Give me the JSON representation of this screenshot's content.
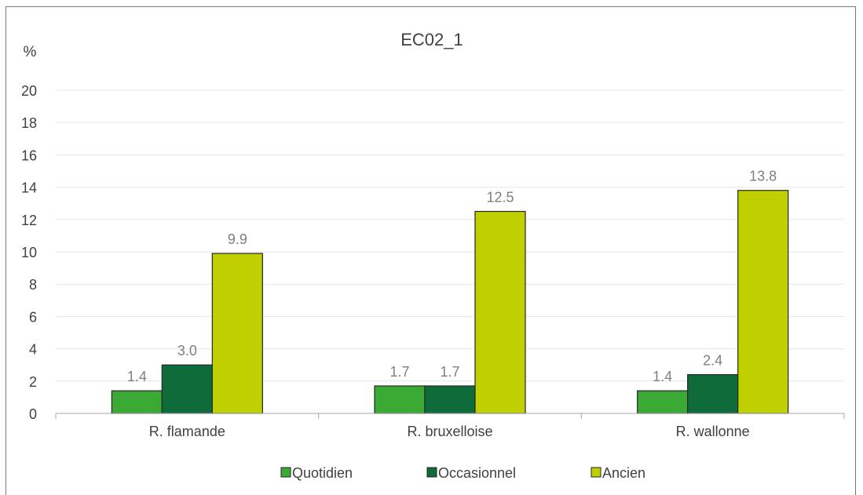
{
  "chart_data": {
    "type": "bar",
    "title": "EC02_1",
    "ylabel": "%",
    "xlabel": "",
    "categories": [
      "R. flamande",
      "R. bruxelloise",
      "R. wallonne"
    ],
    "series": [
      {
        "name": "Quotidien",
        "values": [
          1.4,
          1.7,
          1.4
        ],
        "labels": [
          "1.4",
          "1.7",
          "1.4"
        ],
        "color": "#3aaa35"
      },
      {
        "name": "Occasionnel",
        "values": [
          3.0,
          1.7,
          2.4
        ],
        "labels": [
          "3.0",
          "1.7",
          "2.4"
        ],
        "color": "#0e6b3a"
      },
      {
        "name": "Ancien",
        "values": [
          9.9,
          12.5,
          13.8
        ],
        "labels": [
          "9.9",
          "12.5",
          "13.8"
        ],
        "color": "#bfcf00"
      }
    ],
    "ylim": [
      0,
      20
    ],
    "yticks": [
      "0",
      "2",
      "4",
      "6",
      "8",
      "10",
      "12",
      "14",
      "16",
      "18",
      "20"
    ],
    "grid": true,
    "legend_position": "bottom"
  }
}
